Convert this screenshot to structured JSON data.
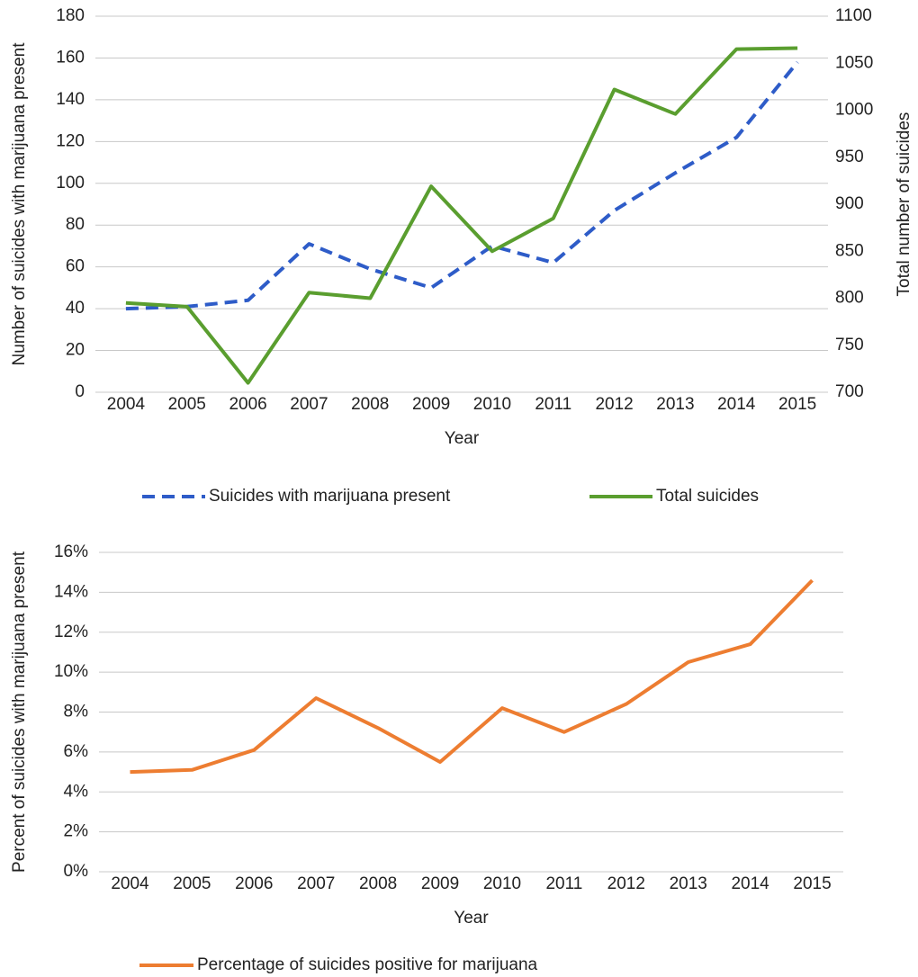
{
  "chart_data": [
    {
      "type": "line",
      "x_label": "Year",
      "y_label": "Number of suicides with marijuana present",
      "y2_label": "Total number of suicides",
      "categories": [
        "2004",
        "2005",
        "2006",
        "2007",
        "2008",
        "2009",
        "2010",
        "2011",
        "2012",
        "2013",
        "2014",
        "2015"
      ],
      "ylim": [
        0,
        180
      ],
      "yticks": [
        0,
        20,
        40,
        60,
        80,
        100,
        120,
        140,
        160,
        180
      ],
      "y2lim": [
        700,
        1100
      ],
      "y2ticks": [
        700,
        750,
        800,
        850,
        900,
        950,
        1000,
        1050,
        1100
      ],
      "grid": true,
      "legend": "bottom",
      "series": [
        {
          "name": "Suicides with marijuana present",
          "color": "#2e5cc8",
          "linestyle": "dashed",
          "values": [
            40,
            41,
            44,
            71,
            59,
            50,
            70,
            62,
            87,
            105,
            122,
            158
          ]
        },
        {
          "name": "Total suicides",
          "color": "#5a9e2f",
          "linestyle": "solid",
          "axis": "y2",
          "values": [
            795,
            791,
            710,
            806,
            800,
            919,
            850,
            885,
            1022,
            996,
            1065,
            1066
          ]
        }
      ]
    },
    {
      "type": "line",
      "x_label": "Year",
      "y_label": "Percent of suicides with marijuana present",
      "categories": [
        "2004",
        "2005",
        "2006",
        "2007",
        "2008",
        "2009",
        "2010",
        "2011",
        "2012",
        "2013",
        "2014",
        "2015"
      ],
      "ylim": [
        0,
        16
      ],
      "yticks": [
        {
          "value": 0,
          "label": "0%"
        },
        {
          "value": 2,
          "label": "2%"
        },
        {
          "value": 4,
          "label": "4%"
        },
        {
          "value": 6,
          "label": "6%"
        },
        {
          "value": 8,
          "label": "8%"
        },
        {
          "value": 10,
          "label": "10%"
        },
        {
          "value": 12,
          "label": "12%"
        },
        {
          "value": 14,
          "label": "14%"
        },
        {
          "value": 16,
          "label": "16%"
        }
      ],
      "grid": true,
      "legend": "bottom",
      "series": [
        {
          "name": "Percentage of suicides positive for marijuana",
          "color": "#ed7d31",
          "linestyle": "solid",
          "values": [
            5.0,
            5.1,
            6.1,
            8.7,
            7.2,
            5.5,
            8.2,
            7.0,
            8.4,
            10.5,
            11.4,
            14.6
          ]
        }
      ]
    }
  ]
}
